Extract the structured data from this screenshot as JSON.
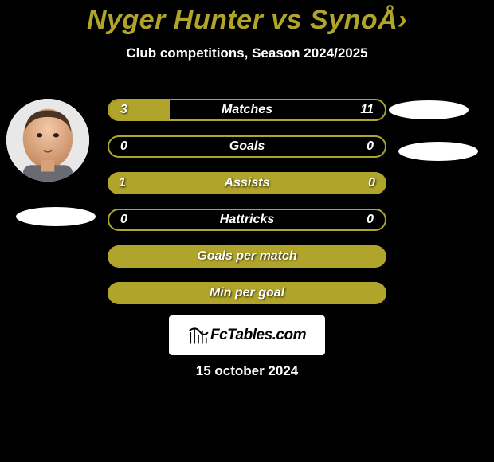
{
  "title": {
    "text": "Nyger Hunter vs SynoÅ›",
    "color": "#b0a42a",
    "fontsize": 34
  },
  "subtitle": {
    "text": "Club competitions, Season 2024/2025",
    "fontsize": 17
  },
  "bars": {
    "accent": "#b0a42a",
    "value_color": "#ffffff",
    "value_fontsize": 16,
    "label_fontsize": 16,
    "rows": [
      {
        "left": "3",
        "center": "Matches",
        "right": "11",
        "fill": "partial",
        "partial_pct": 22
      },
      {
        "left": "0",
        "center": "Goals",
        "right": "0",
        "fill": "outline"
      },
      {
        "left": "1",
        "center": "Assists",
        "right": "0",
        "fill": "full"
      },
      {
        "left": "0",
        "center": "Hattricks",
        "right": "0",
        "fill": "outline"
      },
      {
        "left": "",
        "center": "Goals per match",
        "right": "",
        "fill": "full"
      },
      {
        "left": "",
        "center": "Min per goal",
        "right": "",
        "fill": "full"
      }
    ]
  },
  "logo": {
    "text": "FcTables.com"
  },
  "date": {
    "text": "15 october 2024",
    "fontsize": 17
  }
}
